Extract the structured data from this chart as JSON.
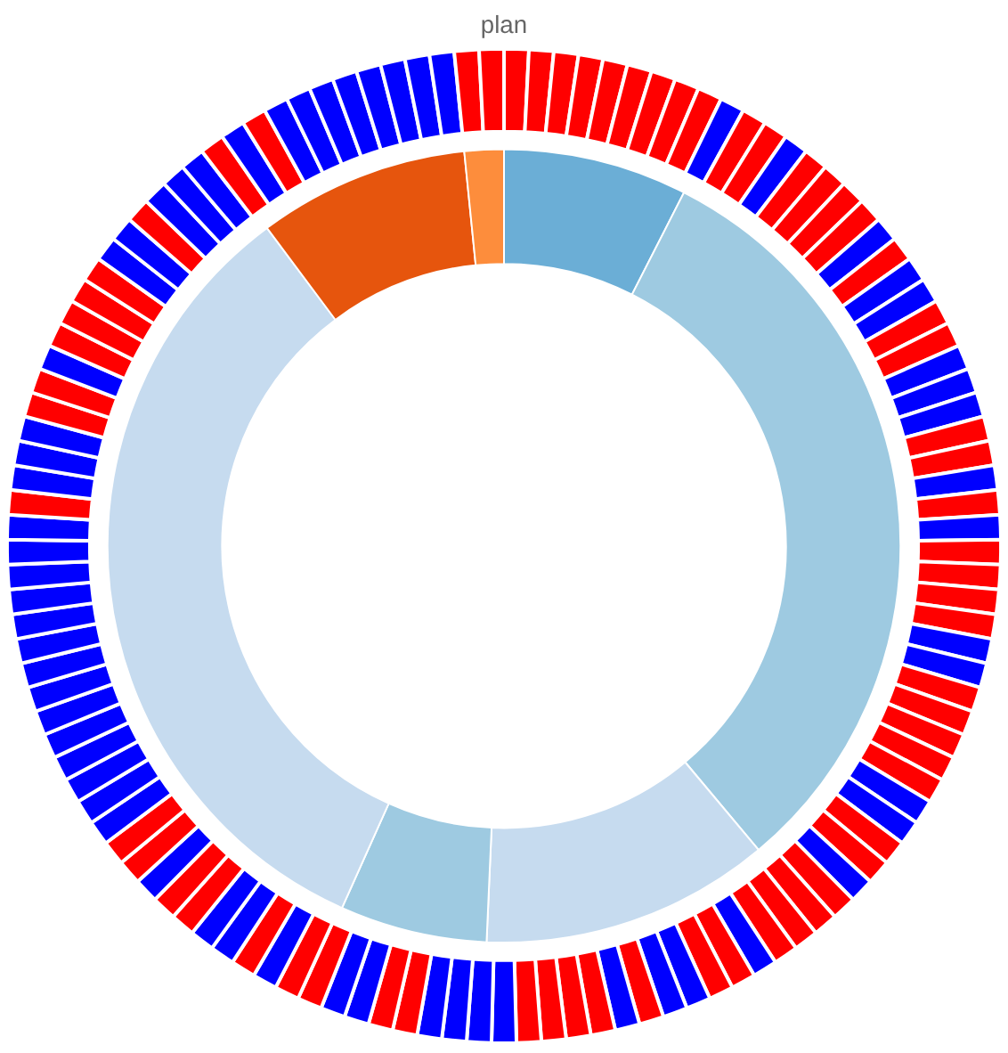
{
  "chart_data": {
    "type": "donut",
    "title": "plan",
    "series": [
      {
        "values": [
          7.5,
          31.4,
          11.8,
          6.0,
          33.1,
          8.6,
          1.6
        ],
        "colors": [
          "#6baed6",
          "#9ecae1",
          "#c6dbef",
          "#9ecae1",
          "#c6dbef",
          "#e6550d",
          "#fd8d3c"
        ]
      },
      {
        "values": [
          0.8,
          0.8,
          0.8,
          0.8,
          0.8,
          0.8,
          0.8,
          0.8,
          0.8,
          0.8,
          0.8,
          0.8,
          0.8,
          0.8,
          0.8,
          0.8,
          0.8,
          0.8,
          0.8,
          0.8,
          0.8,
          0.8,
          0.8,
          0.8,
          0.8,
          0.8,
          0.8,
          0.8,
          0.8,
          0.8,
          0.8,
          0.8,
          0.8,
          0.8,
          0.8,
          0.8,
          0.8,
          0.8,
          0.8,
          0.8,
          0.8,
          0.8,
          0.8,
          0.8,
          0.8,
          0.8,
          0.8,
          0.8,
          0.8,
          0.8,
          0.8,
          0.8,
          0.8,
          0.8,
          0.8,
          0.8,
          0.8,
          0.8,
          0.8,
          0.8,
          0.8,
          0.8,
          0.8,
          0.8,
          0.8,
          0.8,
          0.8,
          0.8,
          0.8,
          0.8,
          0.8,
          0.8,
          0.8,
          0.8,
          0.8,
          0.8,
          0.8,
          0.8,
          0.8,
          0.8,
          0.8,
          0.8,
          0.8,
          0.8,
          0.8,
          0.8,
          0.8,
          0.8,
          0.8,
          0.8,
          0.8,
          0.8,
          0.8,
          0.8,
          0.8,
          0.8,
          0.8,
          0.8,
          0.8,
          0.8,
          0.8,
          0.8,
          0.8,
          0.8,
          0.8,
          0.8,
          0.8,
          0.8,
          0.8,
          0.8,
          0.8,
          0.8,
          0.8,
          0.8,
          0.8,
          0.8,
          0.8,
          0.8,
          0.8,
          0.8,
          0.8,
          0.8,
          0.8,
          0.8,
          0.8
        ],
        "colors": [
          "#ff0000",
          "#ff0000",
          "#ff0000",
          "#ff0000",
          "#ff0000",
          "#ff0000",
          "#ff0000",
          "#ff0000",
          "#ff0000",
          "#0000ff",
          "#ff0000",
          "#ff0000",
          "#0000ff",
          "#ff0000",
          "#ff0000",
          "#ff0000",
          "#ff0000",
          "#0000ff",
          "#ff0000",
          "#0000ff",
          "#0000ff",
          "#ff0000",
          "#ff0000",
          "#0000ff",
          "#0000ff",
          "#0000ff",
          "#ff0000",
          "#ff0000",
          "#0000ff",
          "#ff0000",
          "#0000ff",
          "#ff0000",
          "#ff0000",
          "#ff0000",
          "#ff0000",
          "#0000ff",
          "#0000ff",
          "#ff0000",
          "#ff0000",
          "#ff0000",
          "#ff0000",
          "#ff0000",
          "#0000ff",
          "#0000ff",
          "#ff0000",
          "#ff0000",
          "#0000ff",
          "#ff0000",
          "#ff0000",
          "#ff0000",
          "#ff0000",
          "#0000ff",
          "#ff0000",
          "#ff0000",
          "#0000ff",
          "#0000ff",
          "#ff0000",
          "#0000ff",
          "#ff0000",
          "#ff0000",
          "#ff0000",
          "#ff0000",
          "#0000ff",
          "#0000ff",
          "#0000ff",
          "#0000ff",
          "#ff0000",
          "#ff0000",
          "#0000ff",
          "#0000ff",
          "#ff0000",
          "#ff0000",
          "#0000ff",
          "#ff0000",
          "#0000ff",
          "#0000ff",
          "#ff0000",
          "#ff0000",
          "#0000ff",
          "#ff0000",
          "#ff0000",
          "#0000ff",
          "#0000ff",
          "#0000ff",
          "#0000ff",
          "#0000ff",
          "#0000ff",
          "#0000ff",
          "#0000ff",
          "#0000ff",
          "#0000ff",
          "#0000ff",
          "#0000ff",
          "#0000ff",
          "#0000ff",
          "#ff0000",
          "#0000ff",
          "#0000ff",
          "#0000ff",
          "#ff0000",
          "#ff0000",
          "#0000ff",
          "#ff0000",
          "#ff0000",
          "#ff0000",
          "#ff0000",
          "#0000ff",
          "#0000ff",
          "#ff0000",
          "#0000ff",
          "#0000ff",
          "#0000ff",
          "#ff0000",
          "#0000ff",
          "#ff0000",
          "#0000ff",
          "#0000ff",
          "#0000ff",
          "#0000ff",
          "#0000ff",
          "#0000ff",
          "#0000ff",
          "#0000ff",
          "#ff0000",
          "#ff0000"
        ]
      }
    ]
  }
}
